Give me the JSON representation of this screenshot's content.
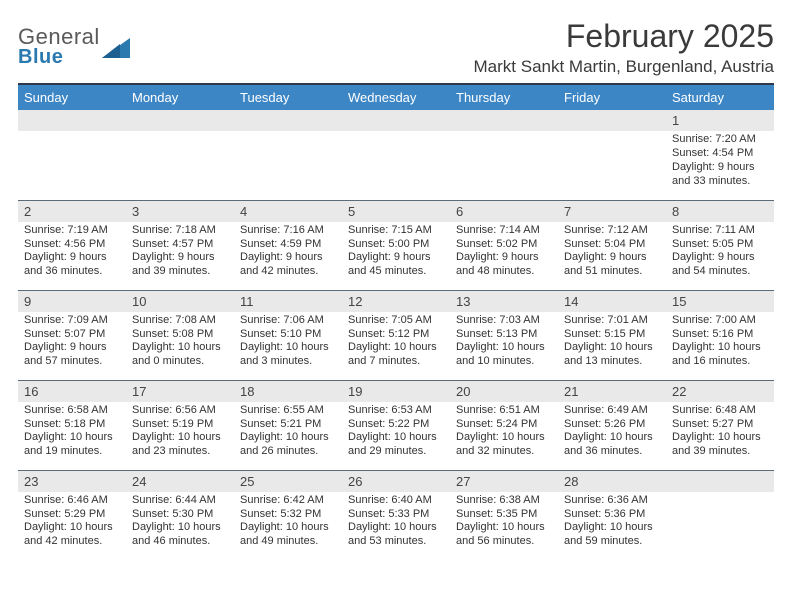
{
  "logo": {
    "word1": "General",
    "word2": "Blue"
  },
  "title": "February 2025",
  "location": "Markt Sankt Martin, Burgenland, Austria",
  "colors": {
    "header_bar": "#3d86c6",
    "logo_blue": "#2a7ab0",
    "rule": "#2e3a4a",
    "daynum_bg": "#e9e9e9"
  },
  "day_names": [
    "Sunday",
    "Monday",
    "Tuesday",
    "Wednesday",
    "Thursday",
    "Friday",
    "Saturday"
  ],
  "weeks": [
    [
      null,
      null,
      null,
      null,
      null,
      null,
      {
        "n": "1",
        "sunrise": "Sunrise: 7:20 AM",
        "sunset": "Sunset: 4:54 PM",
        "daylight": "Daylight: 9 hours and 33 minutes."
      }
    ],
    [
      {
        "n": "2",
        "sunrise": "Sunrise: 7:19 AM",
        "sunset": "Sunset: 4:56 PM",
        "daylight": "Daylight: 9 hours and 36 minutes."
      },
      {
        "n": "3",
        "sunrise": "Sunrise: 7:18 AM",
        "sunset": "Sunset: 4:57 PM",
        "daylight": "Daylight: 9 hours and 39 minutes."
      },
      {
        "n": "4",
        "sunrise": "Sunrise: 7:16 AM",
        "sunset": "Sunset: 4:59 PM",
        "daylight": "Daylight: 9 hours and 42 minutes."
      },
      {
        "n": "5",
        "sunrise": "Sunrise: 7:15 AM",
        "sunset": "Sunset: 5:00 PM",
        "daylight": "Daylight: 9 hours and 45 minutes."
      },
      {
        "n": "6",
        "sunrise": "Sunrise: 7:14 AM",
        "sunset": "Sunset: 5:02 PM",
        "daylight": "Daylight: 9 hours and 48 minutes."
      },
      {
        "n": "7",
        "sunrise": "Sunrise: 7:12 AM",
        "sunset": "Sunset: 5:04 PM",
        "daylight": "Daylight: 9 hours and 51 minutes."
      },
      {
        "n": "8",
        "sunrise": "Sunrise: 7:11 AM",
        "sunset": "Sunset: 5:05 PM",
        "daylight": "Daylight: 9 hours and 54 minutes."
      }
    ],
    [
      {
        "n": "9",
        "sunrise": "Sunrise: 7:09 AM",
        "sunset": "Sunset: 5:07 PM",
        "daylight": "Daylight: 9 hours and 57 minutes."
      },
      {
        "n": "10",
        "sunrise": "Sunrise: 7:08 AM",
        "sunset": "Sunset: 5:08 PM",
        "daylight": "Daylight: 10 hours and 0 minutes."
      },
      {
        "n": "11",
        "sunrise": "Sunrise: 7:06 AM",
        "sunset": "Sunset: 5:10 PM",
        "daylight": "Daylight: 10 hours and 3 minutes."
      },
      {
        "n": "12",
        "sunrise": "Sunrise: 7:05 AM",
        "sunset": "Sunset: 5:12 PM",
        "daylight": "Daylight: 10 hours and 7 minutes."
      },
      {
        "n": "13",
        "sunrise": "Sunrise: 7:03 AM",
        "sunset": "Sunset: 5:13 PM",
        "daylight": "Daylight: 10 hours and 10 minutes."
      },
      {
        "n": "14",
        "sunrise": "Sunrise: 7:01 AM",
        "sunset": "Sunset: 5:15 PM",
        "daylight": "Daylight: 10 hours and 13 minutes."
      },
      {
        "n": "15",
        "sunrise": "Sunrise: 7:00 AM",
        "sunset": "Sunset: 5:16 PM",
        "daylight": "Daylight: 10 hours and 16 minutes."
      }
    ],
    [
      {
        "n": "16",
        "sunrise": "Sunrise: 6:58 AM",
        "sunset": "Sunset: 5:18 PM",
        "daylight": "Daylight: 10 hours and 19 minutes."
      },
      {
        "n": "17",
        "sunrise": "Sunrise: 6:56 AM",
        "sunset": "Sunset: 5:19 PM",
        "daylight": "Daylight: 10 hours and 23 minutes."
      },
      {
        "n": "18",
        "sunrise": "Sunrise: 6:55 AM",
        "sunset": "Sunset: 5:21 PM",
        "daylight": "Daylight: 10 hours and 26 minutes."
      },
      {
        "n": "19",
        "sunrise": "Sunrise: 6:53 AM",
        "sunset": "Sunset: 5:22 PM",
        "daylight": "Daylight: 10 hours and 29 minutes."
      },
      {
        "n": "20",
        "sunrise": "Sunrise: 6:51 AM",
        "sunset": "Sunset: 5:24 PM",
        "daylight": "Daylight: 10 hours and 32 minutes."
      },
      {
        "n": "21",
        "sunrise": "Sunrise: 6:49 AM",
        "sunset": "Sunset: 5:26 PM",
        "daylight": "Daylight: 10 hours and 36 minutes."
      },
      {
        "n": "22",
        "sunrise": "Sunrise: 6:48 AM",
        "sunset": "Sunset: 5:27 PM",
        "daylight": "Daylight: 10 hours and 39 minutes."
      }
    ],
    [
      {
        "n": "23",
        "sunrise": "Sunrise: 6:46 AM",
        "sunset": "Sunset: 5:29 PM",
        "daylight": "Daylight: 10 hours and 42 minutes."
      },
      {
        "n": "24",
        "sunrise": "Sunrise: 6:44 AM",
        "sunset": "Sunset: 5:30 PM",
        "daylight": "Daylight: 10 hours and 46 minutes."
      },
      {
        "n": "25",
        "sunrise": "Sunrise: 6:42 AM",
        "sunset": "Sunset: 5:32 PM",
        "daylight": "Daylight: 10 hours and 49 minutes."
      },
      {
        "n": "26",
        "sunrise": "Sunrise: 6:40 AM",
        "sunset": "Sunset: 5:33 PM",
        "daylight": "Daylight: 10 hours and 53 minutes."
      },
      {
        "n": "27",
        "sunrise": "Sunrise: 6:38 AM",
        "sunset": "Sunset: 5:35 PM",
        "daylight": "Daylight: 10 hours and 56 minutes."
      },
      {
        "n": "28",
        "sunrise": "Sunrise: 6:36 AM",
        "sunset": "Sunset: 5:36 PM",
        "daylight": "Daylight: 10 hours and 59 minutes."
      },
      null
    ]
  ]
}
